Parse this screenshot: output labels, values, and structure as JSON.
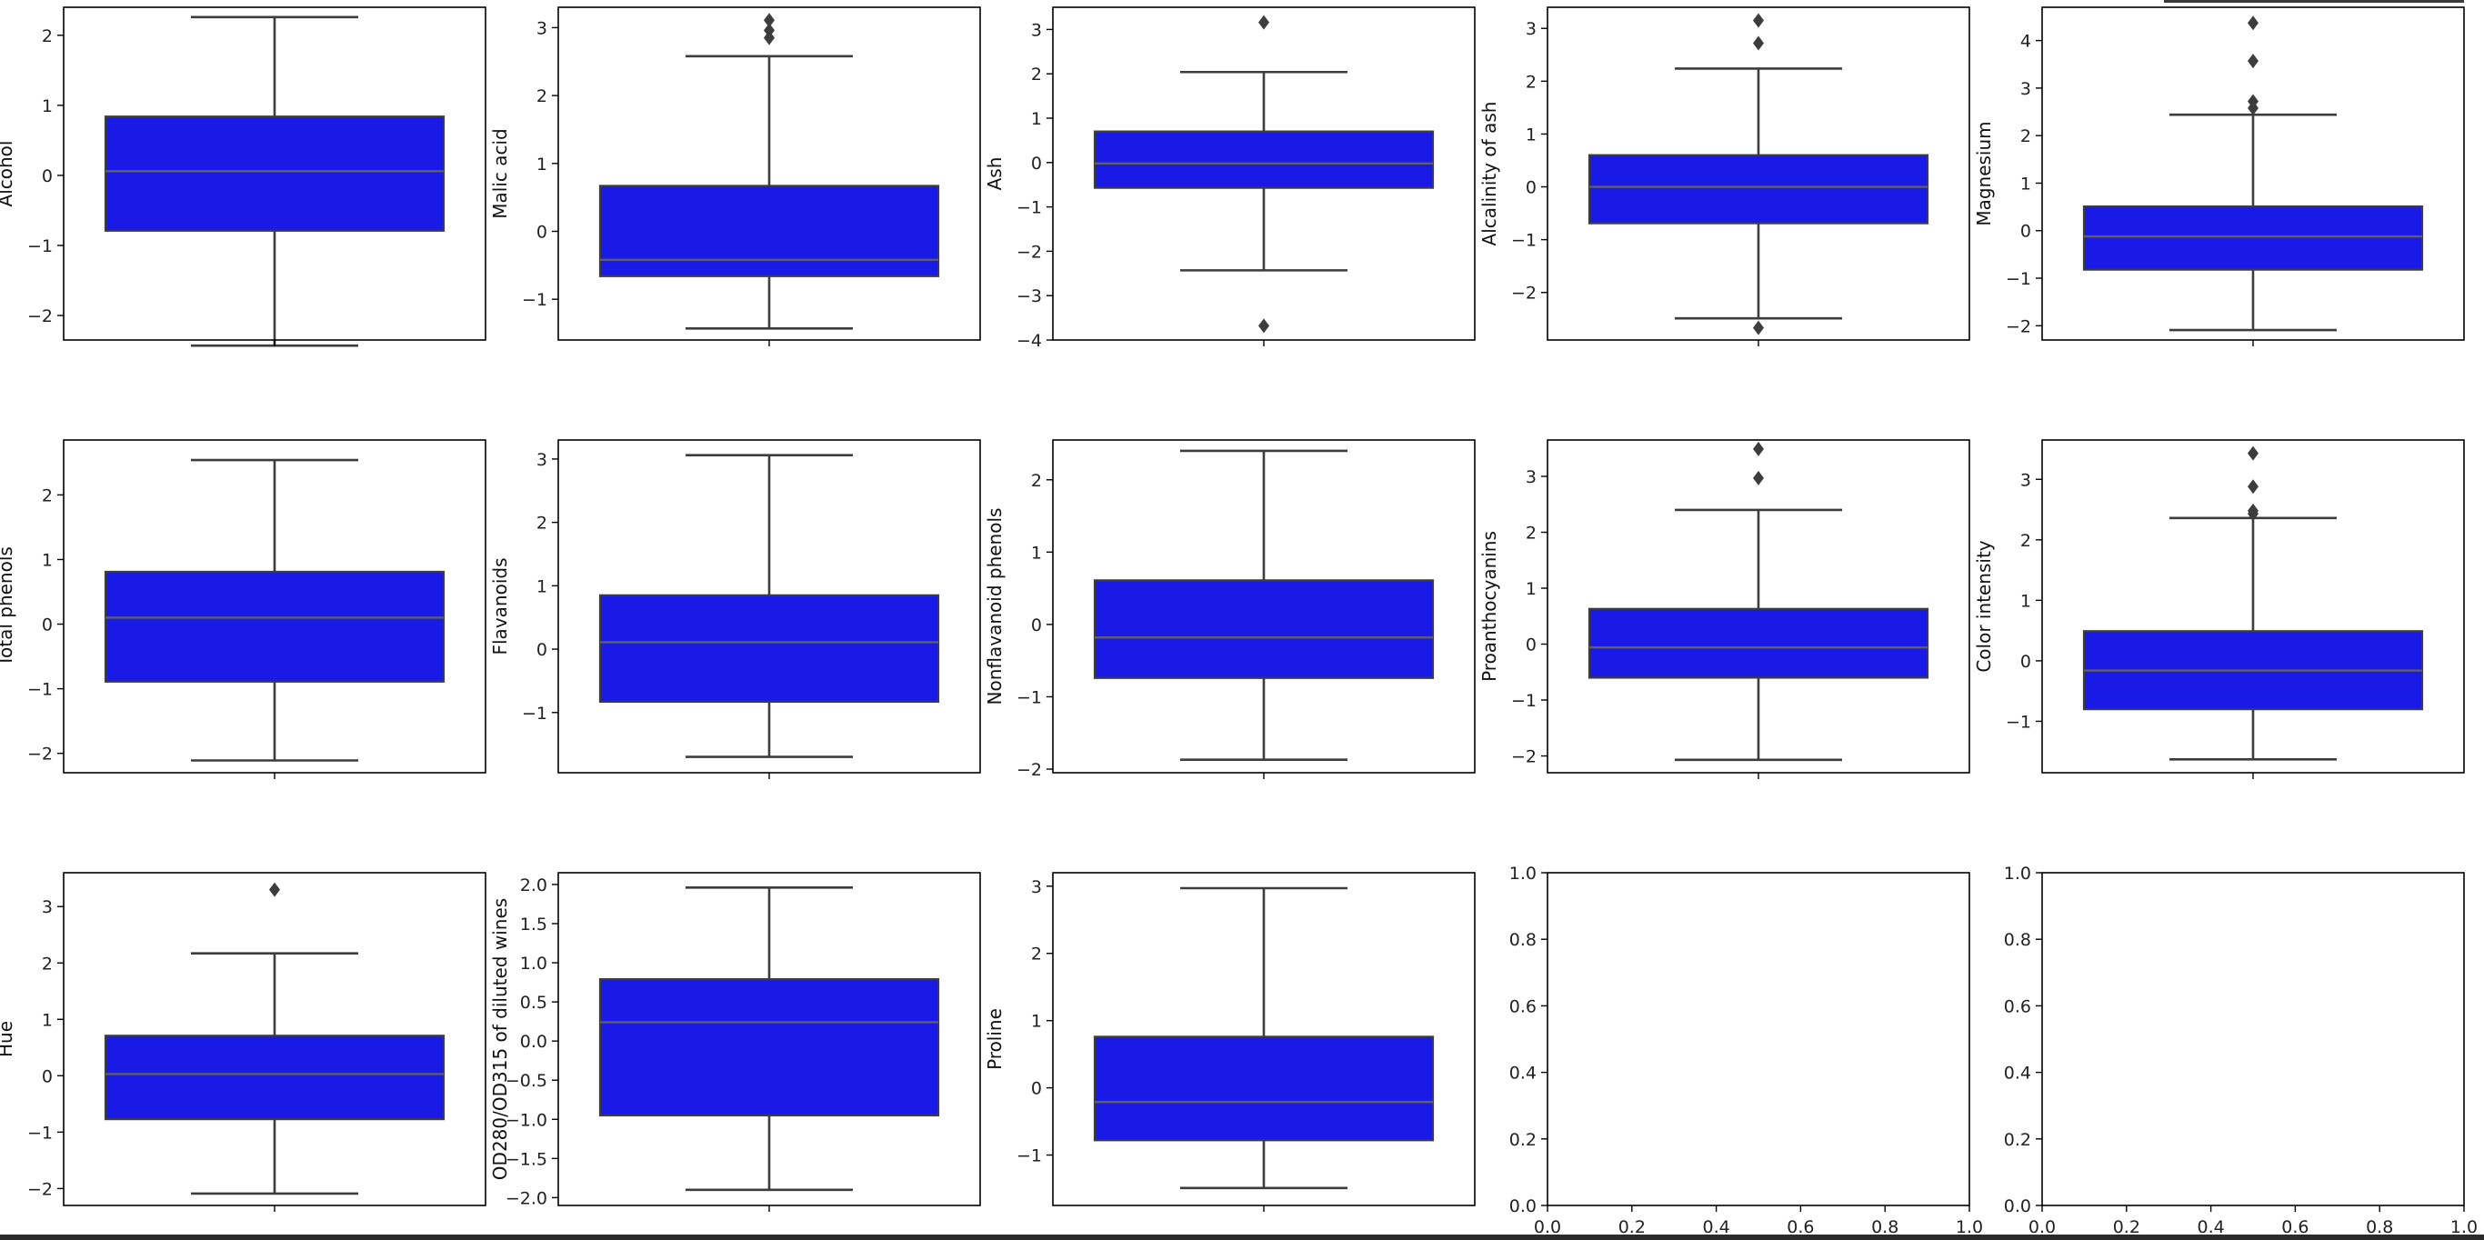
{
  "chart_data": [
    {
      "type": "box",
      "ylabel": "Alcohol",
      "ylim": [
        -2.35,
        2.4
      ],
      "yticks": [
        -2,
        -1,
        0,
        1,
        2
      ],
      "box_color": "#1a1ae6",
      "whisker_low": -2.43,
      "q1": -0.79,
      "median": 0.06,
      "q3": 0.84,
      "whisker_high": 2.26,
      "outliers": []
    },
    {
      "type": "box",
      "ylabel": "Malic acid",
      "ylim": [
        -1.6,
        3.3
      ],
      "yticks": [
        -1,
        0,
        1,
        2,
        3
      ],
      "box_color": "#1a1ae6",
      "whisker_low": -1.43,
      "q1": -0.66,
      "median": -0.42,
      "q3": 0.67,
      "whisker_high": 2.58,
      "outliers": [
        2.85,
        2.96,
        3.11
      ]
    },
    {
      "type": "box",
      "ylabel": "Ash",
      "ylim": [
        -4.0,
        3.5
      ],
      "yticks": [
        -4,
        -3,
        -2,
        -1,
        0,
        1,
        2,
        3
      ],
      "box_color": "#1a1ae6",
      "whisker_low": -2.43,
      "q1": -0.57,
      "median": -0.02,
      "q3": 0.7,
      "whisker_high": 2.04,
      "outliers": [
        3.16,
        -3.68
      ]
    },
    {
      "type": "box",
      "ylabel": "Alcalinity of ash",
      "ylim": [
        -2.9,
        3.4
      ],
      "yticks": [
        -2,
        -1,
        0,
        1,
        2,
        3
      ],
      "box_color": "#1a1ae6",
      "whisker_low": -2.49,
      "q1": -0.69,
      "median": 0.0,
      "q3": 0.6,
      "whisker_high": 2.24,
      "outliers": [
        2.72,
        3.15,
        -2.67
      ]
    },
    {
      "type": "box",
      "ylabel": "Magnesium",
      "ylim": [
        -2.3,
        4.7
      ],
      "yticks": [
        -2,
        -1,
        0,
        1,
        2,
        3,
        4
      ],
      "box_color": "#1a1ae6",
      "whisker_low": -2.09,
      "q1": -0.82,
      "median": -0.12,
      "q3": 0.51,
      "whisker_high": 2.44,
      "outliers": [
        2.58,
        2.72,
        3.57,
        4.37
      ]
    },
    {
      "type": "box",
      "ylabel": "Total phenols",
      "ylim": [
        -2.3,
        2.85
      ],
      "yticks": [
        -2,
        -1,
        0,
        1,
        2
      ],
      "box_color": "#1a1ae6",
      "whisker_low": -2.11,
      "q1": -0.89,
      "median": 0.1,
      "q3": 0.81,
      "whisker_high": 2.54,
      "outliers": []
    },
    {
      "type": "box",
      "ylabel": "Flavanoids",
      "ylim": [
        -1.95,
        3.3
      ],
      "yticks": [
        -1,
        0,
        1,
        2,
        3
      ],
      "box_color": "#1a1ae6",
      "whisker_low": -1.7,
      "q1": -0.83,
      "median": 0.11,
      "q3": 0.85,
      "whisker_high": 3.06,
      "outliers": []
    },
    {
      "type": "box",
      "ylabel": "Nonflavanoid phenols",
      "ylim": [
        -2.05,
        2.55
      ],
      "yticks": [
        -2,
        -1,
        0,
        1,
        2
      ],
      "box_color": "#1a1ae6",
      "whisker_low": -1.87,
      "q1": -0.74,
      "median": -0.18,
      "q3": 0.61,
      "whisker_high": 2.4,
      "outliers": []
    },
    {
      "type": "box",
      "ylabel": "Proanthocyanins",
      "ylim": [
        -2.3,
        3.65
      ],
      "yticks": [
        -2,
        -1,
        0,
        1,
        2,
        3
      ],
      "box_color": "#1a1ae6",
      "whisker_low": -2.07,
      "q1": -0.6,
      "median": -0.06,
      "q3": 0.63,
      "whisker_high": 2.4,
      "outliers": [
        2.97,
        3.49
      ]
    },
    {
      "type": "box",
      "ylabel": "Color intensity",
      "ylim": [
        -1.85,
        3.65
      ],
      "yticks": [
        -1,
        0,
        1,
        2,
        3
      ],
      "box_color": "#1a1ae6",
      "whisker_low": -1.63,
      "q1": -0.8,
      "median": -0.16,
      "q3": 0.49,
      "whisker_high": 2.36,
      "outliers": [
        2.43,
        2.48,
        2.88,
        3.43
      ]
    },
    {
      "type": "box",
      "ylabel": "Hue",
      "ylim": [
        -2.3,
        3.6
      ],
      "yticks": [
        -2,
        -1,
        0,
        1,
        2,
        3
      ],
      "box_color": "#1a1ae6",
      "whisker_low": -2.09,
      "q1": -0.77,
      "median": 0.03,
      "q3": 0.71,
      "whisker_high": 2.17,
      "outliers": [
        3.3
      ]
    },
    {
      "type": "box",
      "ylabel": "OD280/OD315 of diluted wines",
      "ylim": [
        -2.1,
        2.15
      ],
      "yticks": [
        -2.0,
        -1.5,
        -1.0,
        -0.5,
        0.0,
        0.5,
        1.0,
        1.5,
        2.0
      ],
      "ytick_labels": [
        "−2.0",
        "−1.5",
        "−1.0",
        "−0.5",
        "0.0",
        "0.5",
        "1.0",
        "1.5",
        "2.0"
      ],
      "box_color": "#1a1ae6",
      "whisker_low": -1.9,
      "q1": -0.95,
      "median": 0.24,
      "q3": 0.79,
      "whisker_high": 1.96,
      "outliers": []
    },
    {
      "type": "box",
      "ylabel": "Proline",
      "ylim": [
        -1.75,
        3.2
      ],
      "yticks": [
        -1,
        0,
        1,
        2,
        3
      ],
      "box_color": "#1a1ae6",
      "whisker_low": -1.49,
      "q1": -0.78,
      "median": -0.21,
      "q3": 0.76,
      "whisker_high": 2.97,
      "outliers": []
    },
    {
      "type": "empty",
      "ylabel": "",
      "xlim": [
        0.0,
        1.0
      ],
      "ylim": [
        0.0,
        1.0
      ],
      "xticks": [
        "0.0",
        "0.2",
        "0.4",
        "0.6",
        "0.8",
        "1.0"
      ],
      "yticks": [
        "0.0",
        "0.2",
        "0.4",
        "0.6",
        "0.8",
        "1.0"
      ]
    },
    {
      "type": "empty",
      "ylabel": "",
      "xlim": [
        0.0,
        1.0
      ],
      "ylim": [
        0.0,
        1.0
      ],
      "xticks": [
        "0.0",
        "0.2",
        "0.4",
        "0.6",
        "0.8",
        "1.0"
      ],
      "yticks": [
        "0.0",
        "0.2",
        "0.4",
        "0.6",
        "0.8",
        "1.0"
      ]
    }
  ]
}
